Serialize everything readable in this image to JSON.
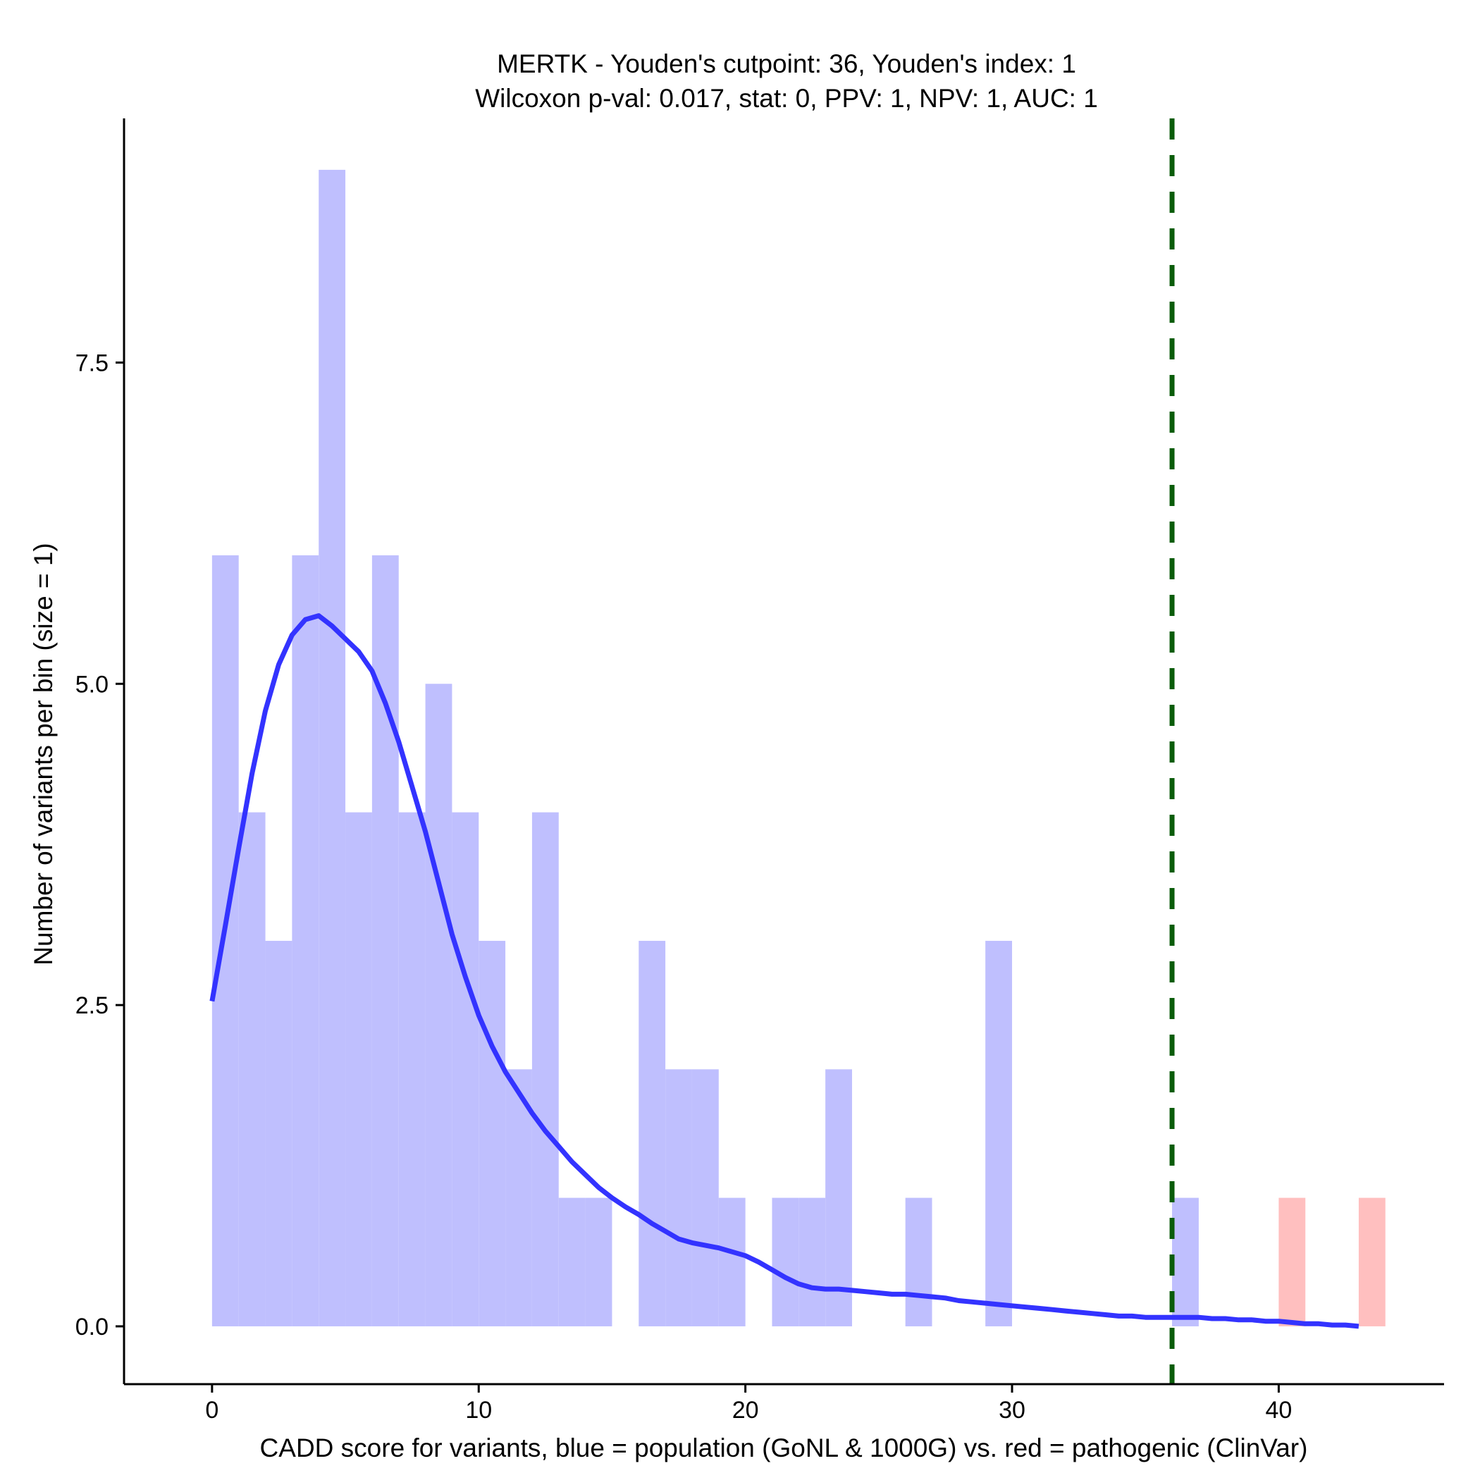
{
  "chart_data": {
    "type": "bar",
    "title": "MERTK - Youden's cutpoint: 36, Youden's index: 1",
    "subtitle": "Wilcoxon p-val: 0.017, stat: 0, PPV: 1, NPV: 1, AUC: 1",
    "xlabel": "CADD score for variants, blue = population (GoNL & 1000G) vs. red = pathogenic (ClinVar)",
    "ylabel": "Number of variants per bin (size = 1)",
    "xlim": [
      -3.3,
      46.2
    ],
    "ylim": [
      -0.45,
      9.4
    ],
    "x_ticks": [
      0,
      10,
      20,
      30,
      40
    ],
    "x_tick_labels": [
      "0",
      "10",
      "20",
      "30",
      "40"
    ],
    "y_ticks": [
      0,
      2.5,
      5,
      7.5
    ],
    "y_tick_labels": [
      "0.0",
      "2.5",
      "5.0",
      "7.5"
    ],
    "bin_width": 1,
    "series": [
      {
        "name": "population (GoNL & 1000G)",
        "color": "#bfbffe",
        "bin_starts": [
          0,
          1,
          2,
          3,
          4,
          5,
          6,
          7,
          8,
          9,
          10,
          11,
          12,
          13,
          14,
          15,
          16,
          17,
          18,
          19,
          20,
          21,
          22,
          23,
          24,
          25,
          26,
          27,
          28,
          29,
          30,
          31,
          32,
          33,
          34,
          35,
          36,
          37,
          38,
          39,
          40,
          41,
          42,
          43
        ],
        "values": [
          6,
          4,
          3,
          6,
          9,
          4,
          6,
          4,
          5,
          4,
          3,
          2,
          4,
          1,
          1,
          0,
          3,
          2,
          2,
          1,
          0,
          1,
          1,
          2,
          0,
          0,
          1,
          0,
          0,
          3,
          0,
          0,
          0,
          0,
          0,
          0,
          1,
          0,
          0,
          0,
          0,
          0,
          0,
          0
        ]
      },
      {
        "name": "pathogenic (ClinVar)",
        "color": "#ffbfbf",
        "bin_starts": [
          0,
          1,
          2,
          3,
          4,
          5,
          6,
          7,
          8,
          9,
          10,
          11,
          12,
          13,
          14,
          15,
          16,
          17,
          18,
          19,
          20,
          21,
          22,
          23,
          24,
          25,
          26,
          27,
          28,
          29,
          30,
          31,
          32,
          33,
          34,
          35,
          36,
          37,
          38,
          39,
          40,
          41,
          42,
          43
        ],
        "values": [
          0,
          0,
          0,
          0,
          0,
          0,
          0,
          0,
          0,
          0,
          0,
          0,
          0,
          0,
          0,
          0,
          0,
          0,
          0,
          0,
          0,
          0,
          0,
          0,
          0,
          0,
          0,
          0,
          0,
          0,
          0,
          0,
          0,
          0,
          0,
          0,
          0,
          0,
          0,
          0,
          1,
          0,
          0,
          1
        ]
      }
    ],
    "density_line": {
      "name": "population density (scaled)",
      "color": "#3333ff",
      "x": [
        0,
        0.5,
        1,
        1.5,
        2,
        2.5,
        3,
        3.5,
        4,
        4.5,
        5,
        5.5,
        6,
        6.5,
        7,
        7.5,
        8,
        8.5,
        9,
        9.5,
        10,
        10.5,
        11,
        11.5,
        12,
        12.5,
        13,
        13.5,
        14,
        14.5,
        15,
        15.5,
        16,
        16.5,
        17,
        17.5,
        18,
        18.5,
        19,
        19.5,
        20,
        20.5,
        21,
        21.5,
        22,
        22.5,
        23,
        23.5,
        24,
        24.5,
        25,
        25.5,
        26,
        26.5,
        27,
        27.5,
        28,
        28.5,
        29,
        29.5,
        30,
        30.5,
        31,
        31.5,
        32,
        32.5,
        33,
        33.5,
        34,
        34.5,
        35,
        35.5,
        36,
        36.5,
        37,
        37.5,
        38,
        38.5,
        39,
        39.5,
        40,
        40.5,
        41,
        41.5,
        42,
        42.5,
        43
      ],
      "y": [
        2.53,
        3.12,
        3.72,
        4.3,
        4.79,
        5.15,
        5.38,
        5.5,
        5.53,
        5.45,
        5.35,
        5.25,
        5.1,
        4.85,
        4.55,
        4.2,
        3.85,
        3.45,
        3.05,
        2.72,
        2.42,
        2.18,
        1.98,
        1.82,
        1.66,
        1.52,
        1.4,
        1.28,
        1.18,
        1.08,
        1.0,
        0.93,
        0.87,
        0.8,
        0.74,
        0.68,
        0.65,
        0.63,
        0.61,
        0.58,
        0.55,
        0.5,
        0.44,
        0.38,
        0.33,
        0.3,
        0.29,
        0.29,
        0.28,
        0.27,
        0.26,
        0.25,
        0.25,
        0.24,
        0.23,
        0.22,
        0.2,
        0.19,
        0.18,
        0.17,
        0.16,
        0.15,
        0.14,
        0.13,
        0.12,
        0.11,
        0.1,
        0.09,
        0.08,
        0.08,
        0.07,
        0.07,
        0.07,
        0.07,
        0.07,
        0.06,
        0.06,
        0.05,
        0.05,
        0.04,
        0.04,
        0.03,
        0.02,
        0.02,
        0.01,
        0.01,
        0.0
      ]
    },
    "cutpoint": {
      "x": 36,
      "color": "#0a5c0a",
      "style": "dashed"
    },
    "grid": false,
    "legend": "none"
  }
}
